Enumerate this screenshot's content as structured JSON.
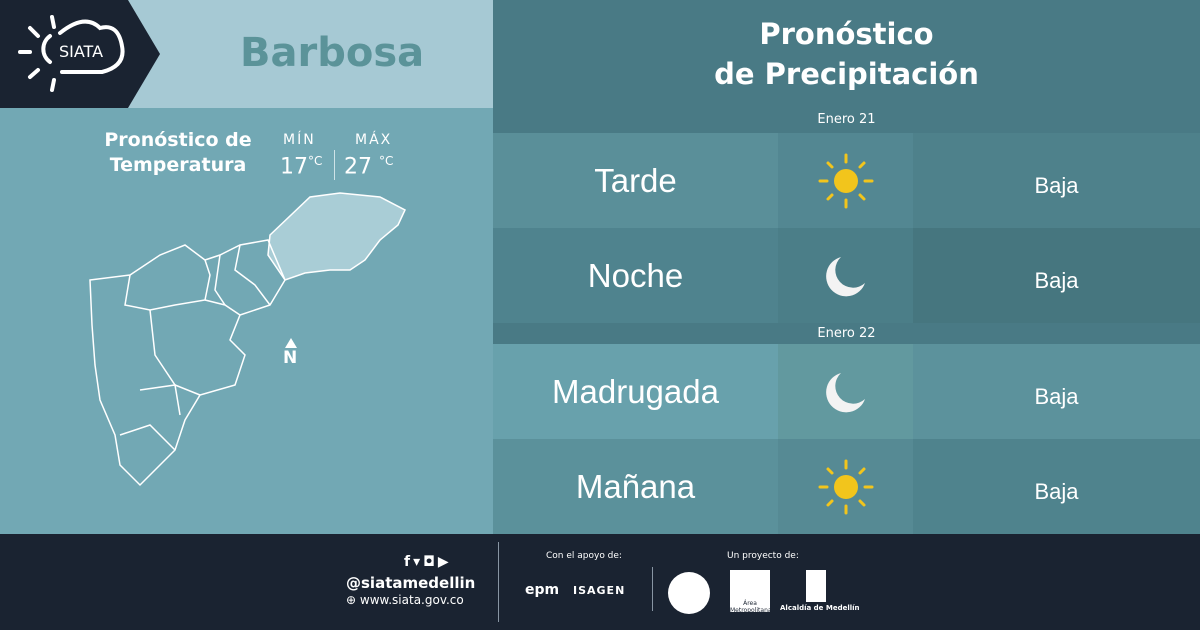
{
  "brand": {
    "logo_text": "SIATA"
  },
  "header": {
    "city": "Barbosa",
    "precip_title_1": "Pronóstico",
    "precip_title_2": "de Precipitación"
  },
  "temperature": {
    "title_1": "Pronóstico de",
    "title_2": "Temperatura",
    "min_label": "MÍN",
    "max_label": "MÁX",
    "min_value": "17",
    "max_value": "27",
    "unit": "°C"
  },
  "map": {
    "north_label": "N"
  },
  "forecast": [
    {
      "date": "Enero 21",
      "periods": [
        {
          "period": "Tarde",
          "icon": "sun-icon",
          "level": "Baja"
        },
        {
          "period": "Noche",
          "icon": "moon-icon",
          "level": "Baja"
        }
      ]
    },
    {
      "date": "Enero 22",
      "periods": [
        {
          "period": "Madrugada",
          "icon": "moon-icon",
          "level": "Baja"
        },
        {
          "period": "Mañana",
          "icon": "sun-icon",
          "level": "Baja"
        }
      ]
    }
  ],
  "footer": {
    "handle": "@siatamedellin",
    "website": "www.siata.gov.co",
    "support_label": "Con el apoyo de:",
    "project_label": "Un proyecto de:",
    "sponsors": [
      "epm",
      "ISAGEN"
    ],
    "partners": [
      "Área Metropolitana",
      "Alcaldía de Medellín"
    ]
  },
  "colors": {
    "sun": "#f2c51c",
    "moon": "#f3f3f3"
  }
}
